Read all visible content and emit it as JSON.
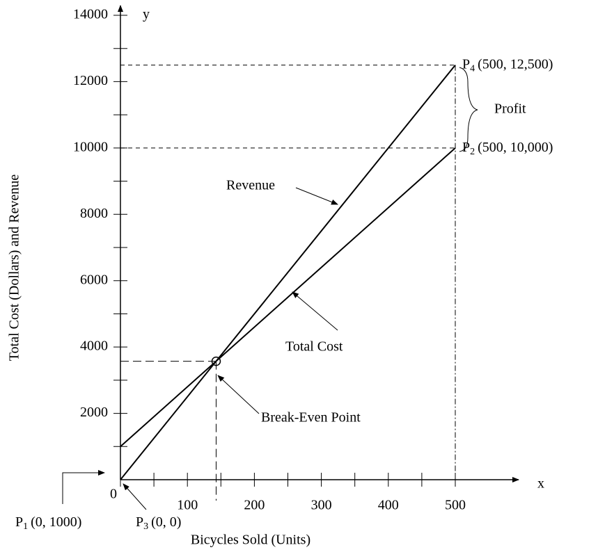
{
  "chart_data": {
    "type": "line",
    "x_label": "Bicycles Sold (Units)",
    "y_label": "Total Cost (Dollars) and Revenue",
    "x_axis_name": "x",
    "y_axis_name": "y",
    "x": [
      0,
      500
    ],
    "series": [
      {
        "name": "Total Cost",
        "color": "#000000",
        "values": [
          1000,
          10000
        ]
      },
      {
        "name": "Revenue",
        "color": "#000000",
        "values": [
          0,
          12500
        ]
      }
    ],
    "xlim": [
      0,
      500
    ],
    "ylim": [
      0,
      14000
    ],
    "xticks": [
      0,
      100,
      200,
      300,
      400,
      500
    ],
    "x_minor_ticks": [
      50,
      150,
      250,
      350,
      450
    ],
    "yticks": [
      2000,
      4000,
      6000,
      8000,
      10000,
      12000,
      14000
    ],
    "y_minor_ticks": [
      1000,
      3000,
      5000,
      7000,
      9000,
      11000,
      13000
    ],
    "points": [
      {
        "name": "P",
        "sub": "1",
        "text": "(0, 1000)",
        "x": 0,
        "y": 1000
      },
      {
        "name": "P",
        "sub": "2",
        "text": "(500, 10,000)",
        "x": 500,
        "y": 10000
      },
      {
        "name": "P",
        "sub": "3",
        "text": "(0, 0)",
        "x": 0,
        "y": 0
      },
      {
        "name": "P",
        "sub": "4",
        "text": "(500, 12,500)",
        "x": 500,
        "y": 12500
      }
    ],
    "break_even": {
      "label": "Break-Even Point",
      "x": 142.9,
      "y": 3571
    },
    "profit_label": "Profit"
  }
}
